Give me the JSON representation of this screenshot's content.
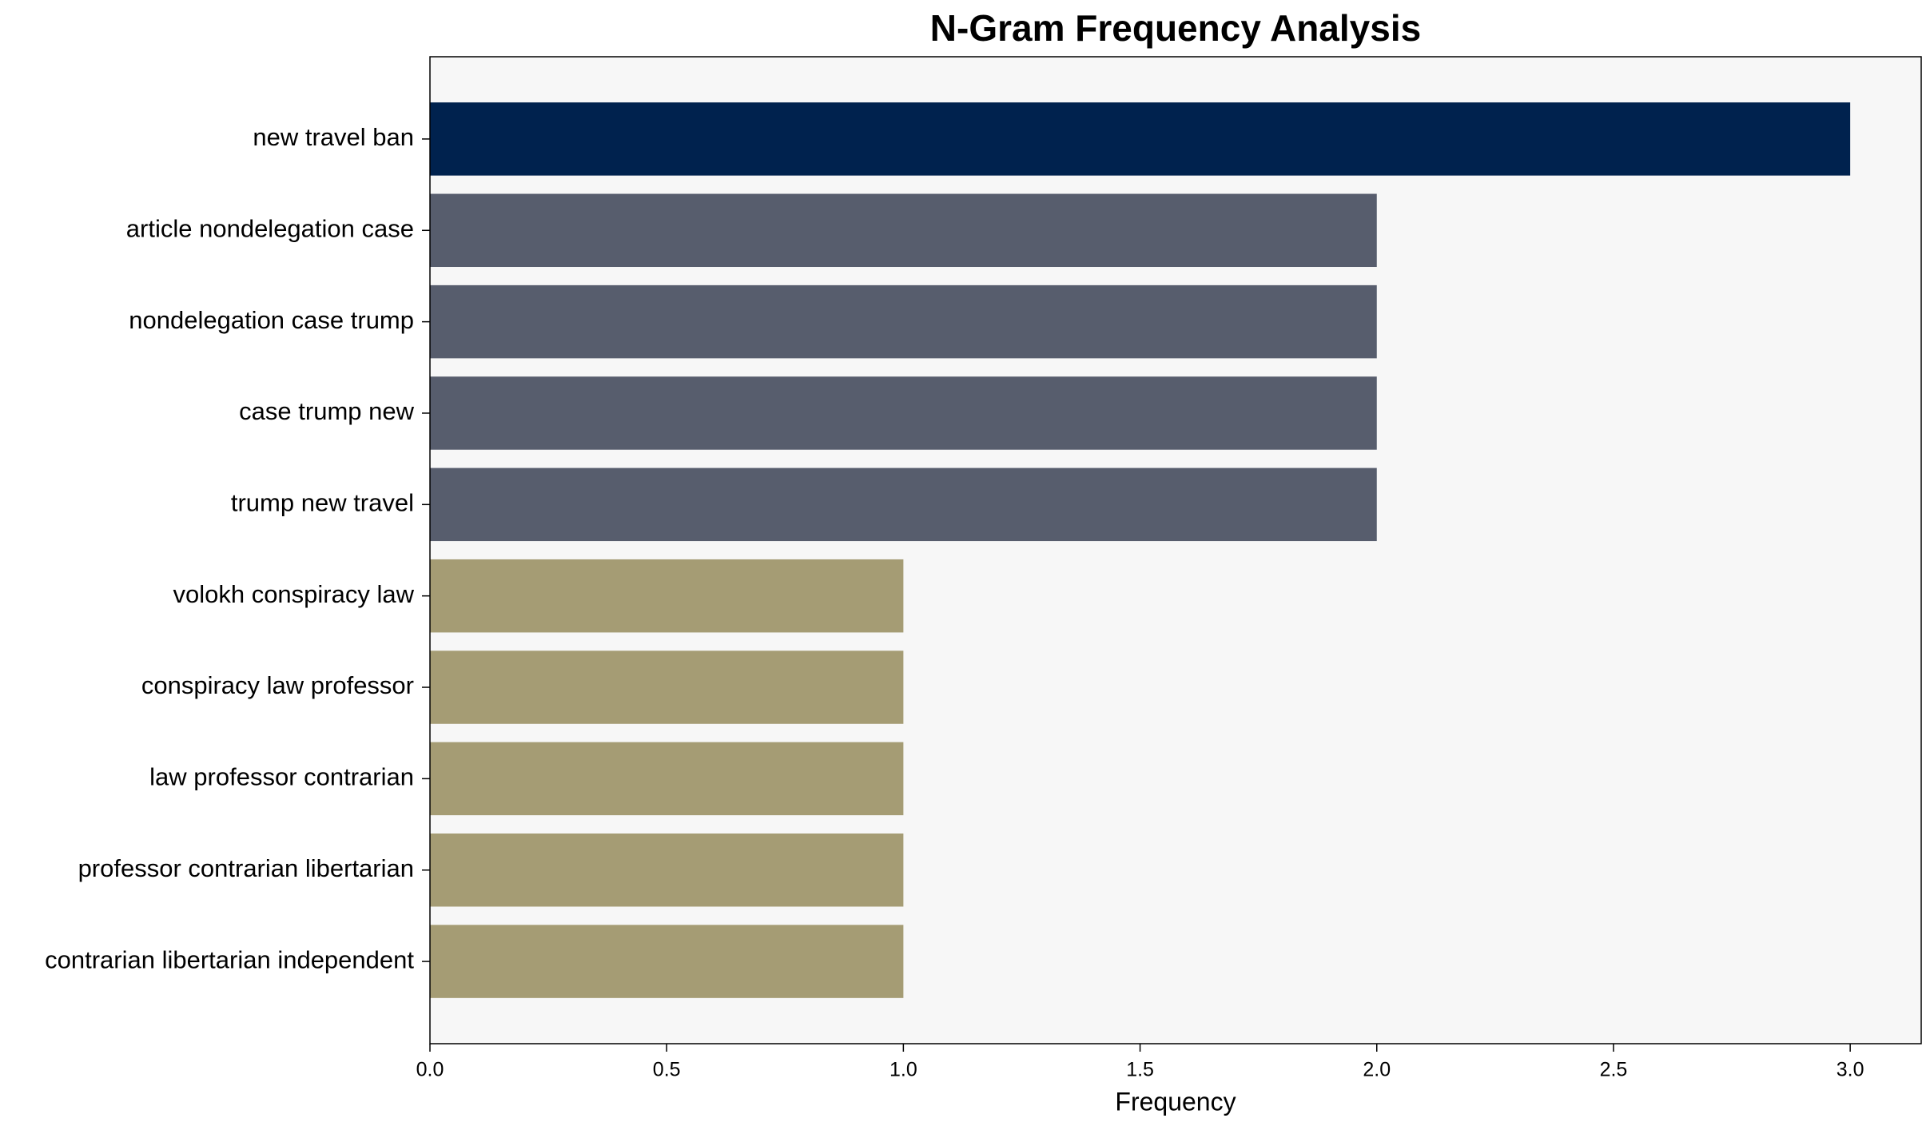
{
  "chart_data": {
    "type": "barh",
    "title": "N-Gram Frequency Analysis",
    "xlabel": "Frequency",
    "categories": [
      "new travel ban",
      "article nondelegation case",
      "nondelegation case trump",
      "case trump new",
      "trump new travel",
      "volokh conspiracy law",
      "conspiracy law professor",
      "law professor contrarian",
      "professor contrarian libertarian",
      "contrarian libertarian independent"
    ],
    "values": [
      3,
      2,
      2,
      2,
      2,
      1,
      1,
      1,
      1,
      1
    ],
    "colors": [
      "#00224e",
      "#575d6d",
      "#575d6d",
      "#575d6d",
      "#575d6d",
      "#a59c74",
      "#a59c74",
      "#a59c74",
      "#a59c74",
      "#a59c74"
    ],
    "xlim": [
      0,
      3.15
    ],
    "xticks": [
      {
        "value": 0,
        "label": "0.0"
      },
      0.5,
      {
        "value": 1,
        "label": "1.0"
      },
      1.5,
      {
        "value": 2,
        "label": "2.0"
      },
      2.5,
      {
        "value": 3,
        "label": "3.0"
      }
    ],
    "grid": false
  }
}
